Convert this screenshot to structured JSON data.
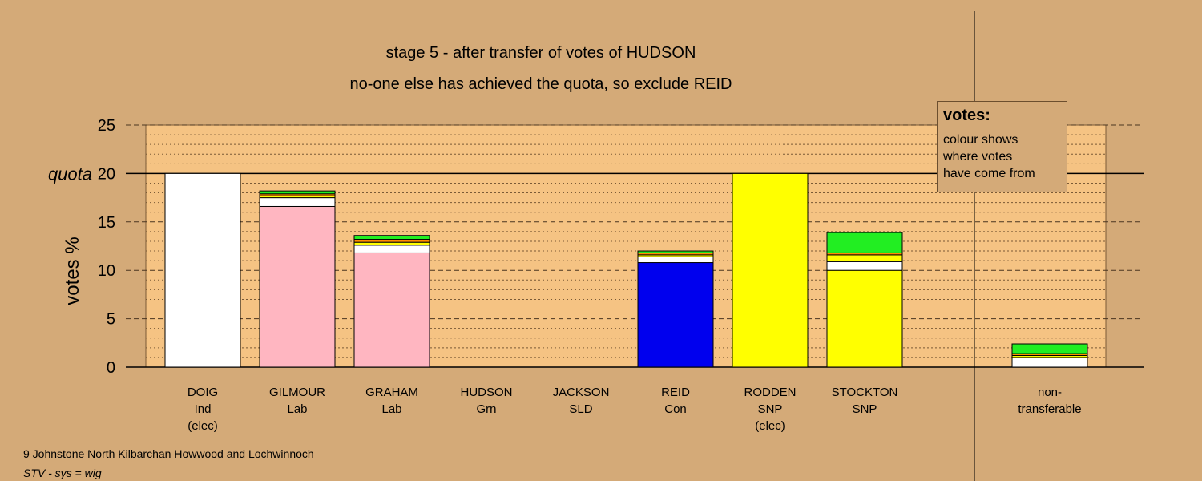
{
  "chart_data": {
    "type": "bar",
    "stacked": true,
    "title": "stage 5 - after transfer of votes of HUDSON",
    "subtitle": "no-one else has achieved the quota, so exclude REID",
    "ylabel": "votes %",
    "ylim": [
      0,
      25
    ],
    "yticks": [
      "0",
      "5",
      "10",
      "15",
      "20",
      "25"
    ],
    "quota_label": "quota",
    "quota_value": 20,
    "grid": true,
    "candidates": [
      {
        "name": "DOIG",
        "party": "Ind",
        "note": "(elec)",
        "segments": [
          {
            "color": "#ffffff",
            "value": 20.0
          }
        ]
      },
      {
        "name": "GILMOUR",
        "party": "Lab",
        "note": "",
        "segments": [
          {
            "color": "#ffb6c1",
            "value": 16.6
          },
          {
            "color": "#ffffff",
            "value": 0.9
          },
          {
            "color": "#ffff00",
            "value": 0.2
          },
          {
            "color": "#ff8c00",
            "value": 0.2
          },
          {
            "color": "#22ee22",
            "value": 0.3
          }
        ]
      },
      {
        "name": "GRAHAM",
        "party": "Lab",
        "note": "",
        "segments": [
          {
            "color": "#ffb6c1",
            "value": 11.8
          },
          {
            "color": "#ffffff",
            "value": 0.8
          },
          {
            "color": "#ffff00",
            "value": 0.3
          },
          {
            "color": "#ff8c00",
            "value": 0.3
          },
          {
            "color": "#22ee22",
            "value": 0.4
          }
        ]
      },
      {
        "name": "HUDSON",
        "party": "Grn",
        "note": "",
        "segments": []
      },
      {
        "name": "JACKSON",
        "party": "SLD",
        "note": "",
        "segments": []
      },
      {
        "name": "REID",
        "party": "Con",
        "note": "",
        "segments": [
          {
            "color": "#0000ee",
            "value": 10.8
          },
          {
            "color": "#ffffff",
            "value": 0.6
          },
          {
            "color": "#ffff00",
            "value": 0.2
          },
          {
            "color": "#ff8c00",
            "value": 0.2
          },
          {
            "color": "#22ee22",
            "value": 0.2
          }
        ]
      },
      {
        "name": "RODDEN",
        "party": "SNP",
        "note": "(elec)",
        "segments": [
          {
            "color": "#ffff00",
            "value": 20.0
          }
        ]
      },
      {
        "name": "STOCKTON",
        "party": "SNP",
        "note": "",
        "segments": [
          {
            "color": "#ffff00",
            "value": 10.0
          },
          {
            "color": "#ffffff",
            "value": 0.9
          },
          {
            "color": "#ffff00",
            "value": 0.7
          },
          {
            "color": "#ff8c00",
            "value": 0.2
          },
          {
            "color": "#22ee22",
            "value": 2.1
          }
        ]
      }
    ],
    "nontransferable": {
      "name": "non-",
      "party": "transferable",
      "segments": [
        {
          "color": "#ffffff",
          "value": 1.0
        },
        {
          "color": "#ffff00",
          "value": 0.2
        },
        {
          "color": "#ff8c00",
          "value": 0.2
        },
        {
          "color": "#22ee22",
          "value": 1.0
        }
      ]
    },
    "colors": {
      "background": "#d4aa78",
      "plot_area": "#f5c383"
    }
  },
  "legend": {
    "title": "votes:",
    "line1": "colour shows",
    "line2": "where votes",
    "line3": "have come from"
  },
  "footer": {
    "ward": "9 Johnstone North Kilbarchan Howwood and Lochwinnoch",
    "system": "STV - sys = wig"
  }
}
